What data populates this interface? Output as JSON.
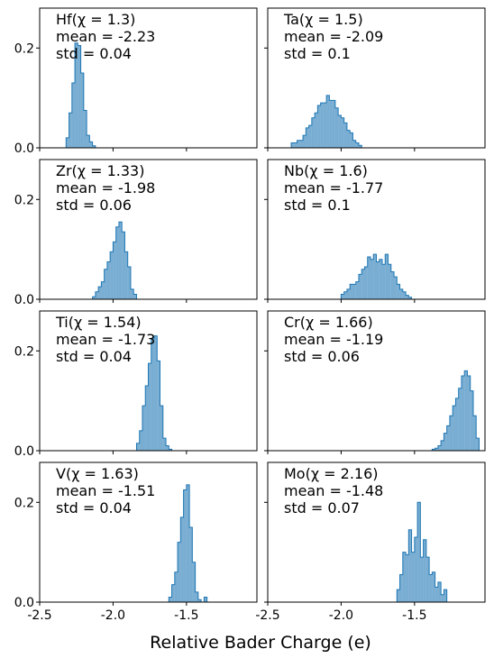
{
  "figure": {
    "xlabel": "Relative Bader Charge (e)",
    "xticks": [
      -2.5,
      -2.0,
      -1.5
    ],
    "xtick_labels": [
      "-2.5",
      "-2.0",
      "-1.5"
    ],
    "yticks": [
      0.0,
      0.2
    ],
    "ytick_labels": [
      "0.0",
      "0.2"
    ]
  },
  "chart_data": [
    {
      "type": "bar",
      "element": "Hf",
      "chi": "1.3",
      "title": "Hf(χ = 1.3)",
      "mean_label": "mean = -2.23",
      "std_label": "std = 0.04",
      "xlim": [
        -2.5,
        -1.02
      ],
      "ylim": [
        0,
        0.28
      ],
      "color": "#1f77b4",
      "bin_width": 0.02,
      "x": [
        -2.32,
        -2.3,
        -2.28,
        -2.26,
        -2.24,
        -2.22,
        -2.2,
        -2.18,
        -2.16,
        -2.14
      ],
      "values": [
        0.02,
        0.07,
        0.13,
        0.21,
        0.205,
        0.15,
        0.075,
        0.025,
        0.012,
        0.004
      ]
    },
    {
      "type": "bar",
      "element": "Ta",
      "chi": "1.5",
      "title": "Ta(χ = 1.5)",
      "mean_label": "mean = -2.09",
      "std_label": "std = 0.1",
      "xlim": [
        -2.5,
        -1.02
      ],
      "ylim": [
        0,
        0.28
      ],
      "color": "#1f77b4",
      "bin_width": 0.02,
      "x": [
        -2.34,
        -2.32,
        -2.3,
        -2.28,
        -2.26,
        -2.24,
        -2.22,
        -2.2,
        -2.18,
        -2.16,
        -2.14,
        -2.12,
        -2.1,
        -2.08,
        -2.06,
        -2.04,
        -2.02,
        -2.0,
        -1.98,
        -1.96,
        -1.94,
        -1.92,
        -1.9,
        -1.88
      ],
      "values": [
        0.01,
        0.01,
        0.015,
        0.015,
        0.025,
        0.04,
        0.045,
        0.06,
        0.07,
        0.085,
        0.09,
        0.09,
        0.105,
        0.095,
        0.095,
        0.08,
        0.065,
        0.06,
        0.05,
        0.035,
        0.03,
        0.015,
        0.01,
        0.005
      ]
    },
    {
      "type": "bar",
      "element": "Zr",
      "chi": "1.33",
      "title": "Zr(χ = 1.33)",
      "mean_label": "mean = -1.98",
      "std_label": "std = 0.06",
      "xlim": [
        -2.5,
        -1.02
      ],
      "ylim": [
        0,
        0.28
      ],
      "color": "#1f77b4",
      "bin_width": 0.02,
      "x": [
        -2.14,
        -2.12,
        -2.1,
        -2.08,
        -2.06,
        -2.04,
        -2.02,
        -2.0,
        -1.98,
        -1.96,
        -1.94,
        -1.92,
        -1.9,
        -1.88,
        -1.86
      ],
      "values": [
        0.005,
        0.015,
        0.025,
        0.035,
        0.06,
        0.075,
        0.095,
        0.115,
        0.145,
        0.155,
        0.135,
        0.095,
        0.065,
        0.02,
        0.01
      ]
    },
    {
      "type": "bar",
      "element": "Nb",
      "chi": "1.6",
      "title": "Nb(χ = 1.6)",
      "mean_label": "mean = -1.77",
      "std_label": "std = 0.1",
      "xlim": [
        -2.5,
        -1.02
      ],
      "ylim": [
        0,
        0.28
      ],
      "color": "#1f77b4",
      "bin_width": 0.02,
      "x": [
        -2.0,
        -1.98,
        -1.96,
        -1.94,
        -1.92,
        -1.9,
        -1.88,
        -1.86,
        -1.84,
        -1.82,
        -1.8,
        -1.78,
        -1.76,
        -1.74,
        -1.72,
        -1.7,
        -1.68,
        -1.66,
        -1.64,
        -1.62,
        -1.6,
        -1.58,
        -1.56,
        -1.54
      ],
      "values": [
        0.01,
        0.015,
        0.02,
        0.03,
        0.03,
        0.035,
        0.05,
        0.06,
        0.065,
        0.085,
        0.08,
        0.09,
        0.075,
        0.08,
        0.07,
        0.09,
        0.07,
        0.055,
        0.045,
        0.03,
        0.02,
        0.015,
        0.008,
        0.004
      ]
    },
    {
      "type": "bar",
      "element": "Ti",
      "chi": "1.54",
      "title": "Ti(χ = 1.54)",
      "mean_label": "mean = -1.73",
      "std_label": "std = 0.04",
      "xlim": [
        -2.5,
        -1.02
      ],
      "ylim": [
        0,
        0.28
      ],
      "color": "#1f77b4",
      "bin_width": 0.02,
      "x": [
        -1.84,
        -1.82,
        -1.8,
        -1.78,
        -1.76,
        -1.74,
        -1.72,
        -1.7,
        -1.68,
        -1.66,
        -1.64,
        -1.62
      ],
      "values": [
        0.015,
        0.04,
        0.09,
        0.13,
        0.175,
        0.225,
        0.23,
        0.18,
        0.09,
        0.025,
        0.01,
        0.003
      ]
    },
    {
      "type": "bar",
      "element": "Cr",
      "chi": "1.66",
      "title": "Cr(χ = 1.66)",
      "mean_label": "mean = -1.19",
      "std_label": "std = 0.06",
      "xlim": [
        -2.5,
        -1.02
      ],
      "ylim": [
        0,
        0.28
      ],
      "color": "#1f77b4",
      "bin_width": 0.02,
      "x": [
        -1.38,
        -1.36,
        -1.34,
        -1.32,
        -1.3,
        -1.28,
        -1.26,
        -1.24,
        -1.22,
        -1.2,
        -1.18,
        -1.16,
        -1.14,
        -1.12,
        -1.1,
        -1.08
      ],
      "values": [
        0.003,
        0.005,
        0.01,
        0.02,
        0.035,
        0.05,
        0.07,
        0.09,
        0.105,
        0.125,
        0.15,
        0.16,
        0.15,
        0.12,
        0.07,
        0.025
      ]
    },
    {
      "type": "bar",
      "element": "V",
      "chi": "1.63",
      "title": "V(χ = 1.63)",
      "mean_label": "mean = -1.51",
      "std_label": "std = 0.04",
      "xlim": [
        -2.5,
        -1.02
      ],
      "ylim": [
        0,
        0.28
      ],
      "color": "#1f77b4",
      "bin_width": 0.02,
      "x": [
        -1.62,
        -1.6,
        -1.58,
        -1.56,
        -1.54,
        -1.52,
        -1.5,
        -1.48,
        -1.46,
        -1.44,
        -1.42,
        -1.4,
        -1.38
      ],
      "values": [
        0.01,
        0.035,
        0.06,
        0.12,
        0.17,
        0.225,
        0.235,
        0.15,
        0.08,
        0.02,
        0.005,
        0.0,
        0.01
      ]
    },
    {
      "type": "bar",
      "element": "Mo",
      "chi": "2.16",
      "title": "Mo(χ = 2.16)",
      "mean_label": "mean = -1.48",
      "std_label": "std = 0.07",
      "xlim": [
        -2.5,
        -1.02
      ],
      "ylim": [
        0,
        0.28
      ],
      "color": "#1f77b4",
      "bin_width": 0.02,
      "x": [
        -1.62,
        -1.6,
        -1.58,
        -1.56,
        -1.54,
        -1.52,
        -1.5,
        -1.48,
        -1.46,
        -1.44,
        -1.42,
        -1.4,
        -1.38,
        -1.36,
        -1.34,
        -1.32,
        -1.3
      ],
      "values": [
        0.025,
        0.055,
        0.1,
        0.095,
        0.145,
        0.1,
        0.13,
        0.2,
        0.09,
        0.125,
        0.09,
        0.055,
        0.06,
        0.03,
        0.04,
        0.015,
        0.025
      ]
    }
  ]
}
